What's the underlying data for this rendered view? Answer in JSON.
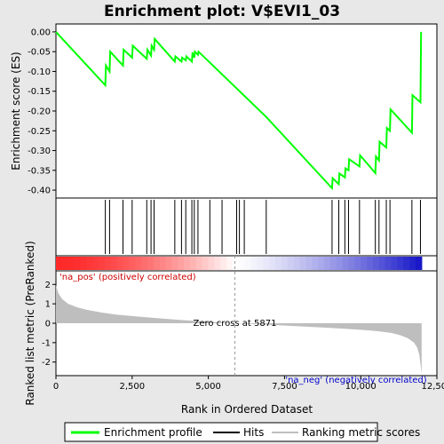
{
  "chart_data": {
    "type": "line",
    "title": "Enrichment plot: V$EVI1_03",
    "top_panel": {
      "ylabel": "Enrichment score (ES)",
      "ylim": [
        -0.42,
        0.02
      ],
      "yticks": [
        "0.00",
        "-0.05",
        "-0.10",
        "-0.15",
        "-0.20",
        "-0.25",
        "-0.30",
        "-0.35",
        "-0.40"
      ],
      "ytick_values": [
        0.0,
        -0.05,
        -0.1,
        -0.15,
        -0.2,
        -0.25,
        -0.3,
        -0.35,
        -0.4
      ],
      "series": [
        {
          "name": "Enrichment profile",
          "color": "#00ff00",
          "x": [
            0,
            1620,
            1640,
            1760,
            1780,
            2200,
            2220,
            2500,
            2520,
            2980,
            3000,
            3120,
            3140,
            3220,
            3240,
            3900,
            3920,
            4120,
            4140,
            4260,
            4280,
            4460,
            4480,
            4540,
            4560,
            4660,
            4680,
            6900,
            9060,
            9080,
            9280,
            9300,
            9480,
            9500,
            9600,
            9620,
            9960,
            9980,
            10480,
            10500,
            10600,
            10620,
            10840,
            10860,
            10960,
            10980,
            11680,
            11700,
            11960,
            11980
          ],
          "y": [
            0.0,
            -0.135,
            -0.085,
            -0.1,
            -0.05,
            -0.085,
            -0.045,
            -0.065,
            -0.035,
            -0.068,
            -0.045,
            -0.06,
            -0.035,
            -0.045,
            -0.018,
            -0.075,
            -0.062,
            -0.075,
            -0.065,
            -0.072,
            -0.062,
            -0.075,
            -0.052,
            -0.065,
            -0.05,
            -0.058,
            -0.05,
            -0.215,
            -0.395,
            -0.37,
            -0.385,
            -0.358,
            -0.368,
            -0.345,
            -0.35,
            -0.322,
            -0.34,
            -0.312,
            -0.357,
            -0.315,
            -0.325,
            -0.278,
            -0.292,
            -0.243,
            -0.25,
            -0.196,
            -0.255,
            -0.16,
            -0.178,
            0.0
          ]
        }
      ]
    },
    "hits": {
      "name": "Hits",
      "x": [
        1620,
        1760,
        2200,
        2500,
        2980,
        3120,
        3220,
        3900,
        4120,
        4260,
        4460,
        4540,
        4660,
        5050,
        5450,
        5930,
        6020,
        6180,
        6900,
        9060,
        9280,
        9480,
        9600,
        9960,
        10480,
        10600,
        10840,
        10960,
        11680,
        11960
      ]
    },
    "ranked_metric": {
      "name": "Ranking metric scores",
      "ylabel": "Ranked list metric (PreRanked)",
      "ylim": [
        -2.7,
        2.7
      ],
      "yticks": [
        "2",
        "1",
        "0",
        "-1",
        "-2"
      ],
      "ytick_values": [
        2,
        1,
        0,
        -1,
        -2
      ],
      "x": [
        0,
        80,
        200,
        400,
        700,
        1000,
        1500,
        2000,
        3000,
        4000,
        5000,
        5871,
        7000,
        8000,
        9000,
        10000,
        10500,
        11000,
        11300,
        11550,
        11750,
        11850,
        11920,
        11960,
        12000
      ],
      "y": [
        1.95,
        1.55,
        1.25,
        1.0,
        0.82,
        0.7,
        0.55,
        0.44,
        0.3,
        0.18,
        0.08,
        0.0,
        -0.08,
        -0.16,
        -0.24,
        -0.34,
        -0.4,
        -0.5,
        -0.62,
        -0.78,
        -1.0,
        -1.25,
        -1.6,
        -2.1,
        -2.6
      ]
    },
    "zero_cross": 5871,
    "zero_cross_label": "Zero cross at 5871",
    "pos_label": "'na_pos' (positively correlated)",
    "neg_label": "'na_neg' (negatively correlated)",
    "xlabel": "Rank in Ordered Dataset",
    "xlim": [
      0,
      12500
    ],
    "xticks": [
      "0",
      "2,500",
      "5,000",
      "7,500",
      "10,000",
      "12,500"
    ],
    "xtick_values": [
      0,
      2500,
      5000,
      7500,
      10000,
      12500
    ],
    "list_end": 12000,
    "legend": {
      "placement": "bottom",
      "items": [
        "Enrichment profile",
        "Hits",
        "Ranking metric scores"
      ]
    },
    "colors": {
      "profile": "#00ff00",
      "hits": "#000000",
      "metric_fill": "#bebebe",
      "pos_label": "#cc0000",
      "neg_label": "#0000cc",
      "zero_line": "#999999",
      "panel_bg": "#ffffff"
    }
  }
}
